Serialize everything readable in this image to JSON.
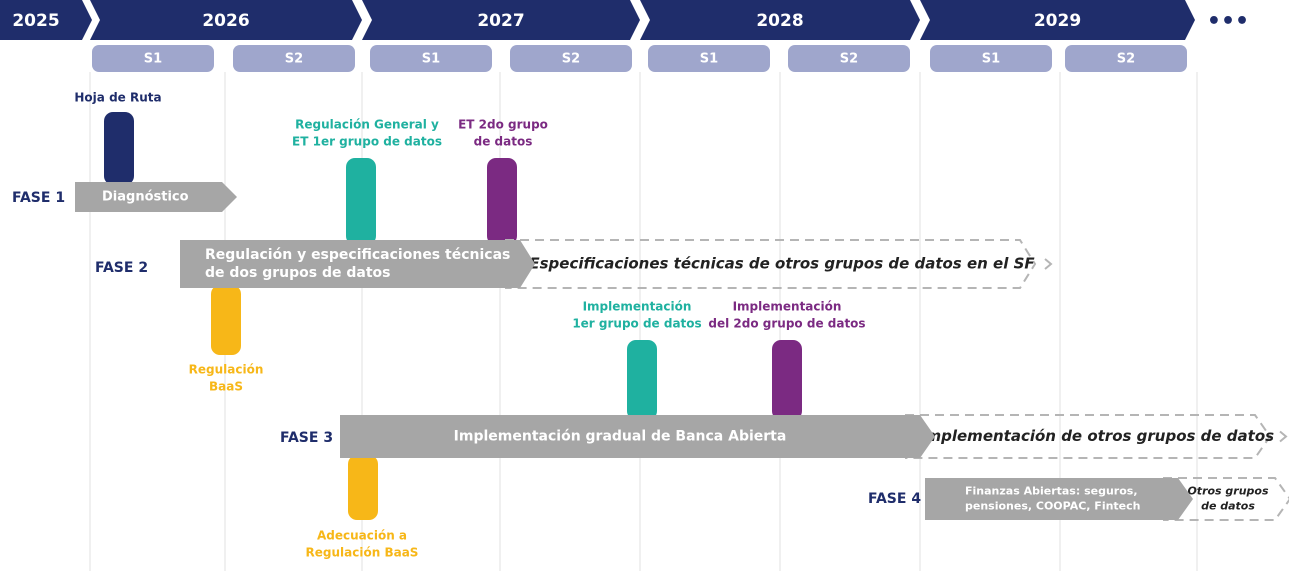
{
  "timeline": {
    "years": [
      "2025",
      "2026",
      "2027",
      "2028",
      "2029"
    ],
    "more": "•••",
    "semesters": [
      "S1",
      "S2",
      "S1",
      "S2",
      "S1",
      "S2",
      "S1",
      "S2"
    ]
  },
  "milestones": [
    {
      "lines": [
        "Hoja de Ruta"
      ]
    },
    {
      "lines": [
        "Regulación General y",
        "ET 1er grupo de datos"
      ]
    },
    {
      "lines": [
        "ET 2do grupo",
        "de datos"
      ]
    },
    {
      "lines": [
        "Regulación",
        "BaaS"
      ]
    },
    {
      "lines": [
        "Implementación",
        "1er grupo de datos"
      ]
    },
    {
      "lines": [
        "Implementación",
        "del 2do grupo de datos"
      ]
    },
    {
      "lines": [
        "Adecuación a",
        "Regulación BaaS"
      ]
    }
  ],
  "phases": [
    {
      "label": "FASE 1",
      "bar": [
        "Diagnóstico"
      ]
    },
    {
      "label": "FASE 2",
      "bar": [
        "Regulación y especificaciones técnicas",
        "de dos grupos de datos"
      ],
      "next": [
        "Especificaciones técnicas de otros grupos de datos en el SF"
      ]
    },
    {
      "label": "FASE 3",
      "bar": [
        "Implementación gradual de Banca Abierta"
      ],
      "next": [
        "Implementación de otros grupos de datos"
      ]
    },
    {
      "label": "FASE 4",
      "bar": [
        "Finanzas Abiertas: seguros,",
        "pensiones, COOPAC, Fintech"
      ],
      "next": [
        "Otros grupos",
        "de datos"
      ]
    }
  ]
}
